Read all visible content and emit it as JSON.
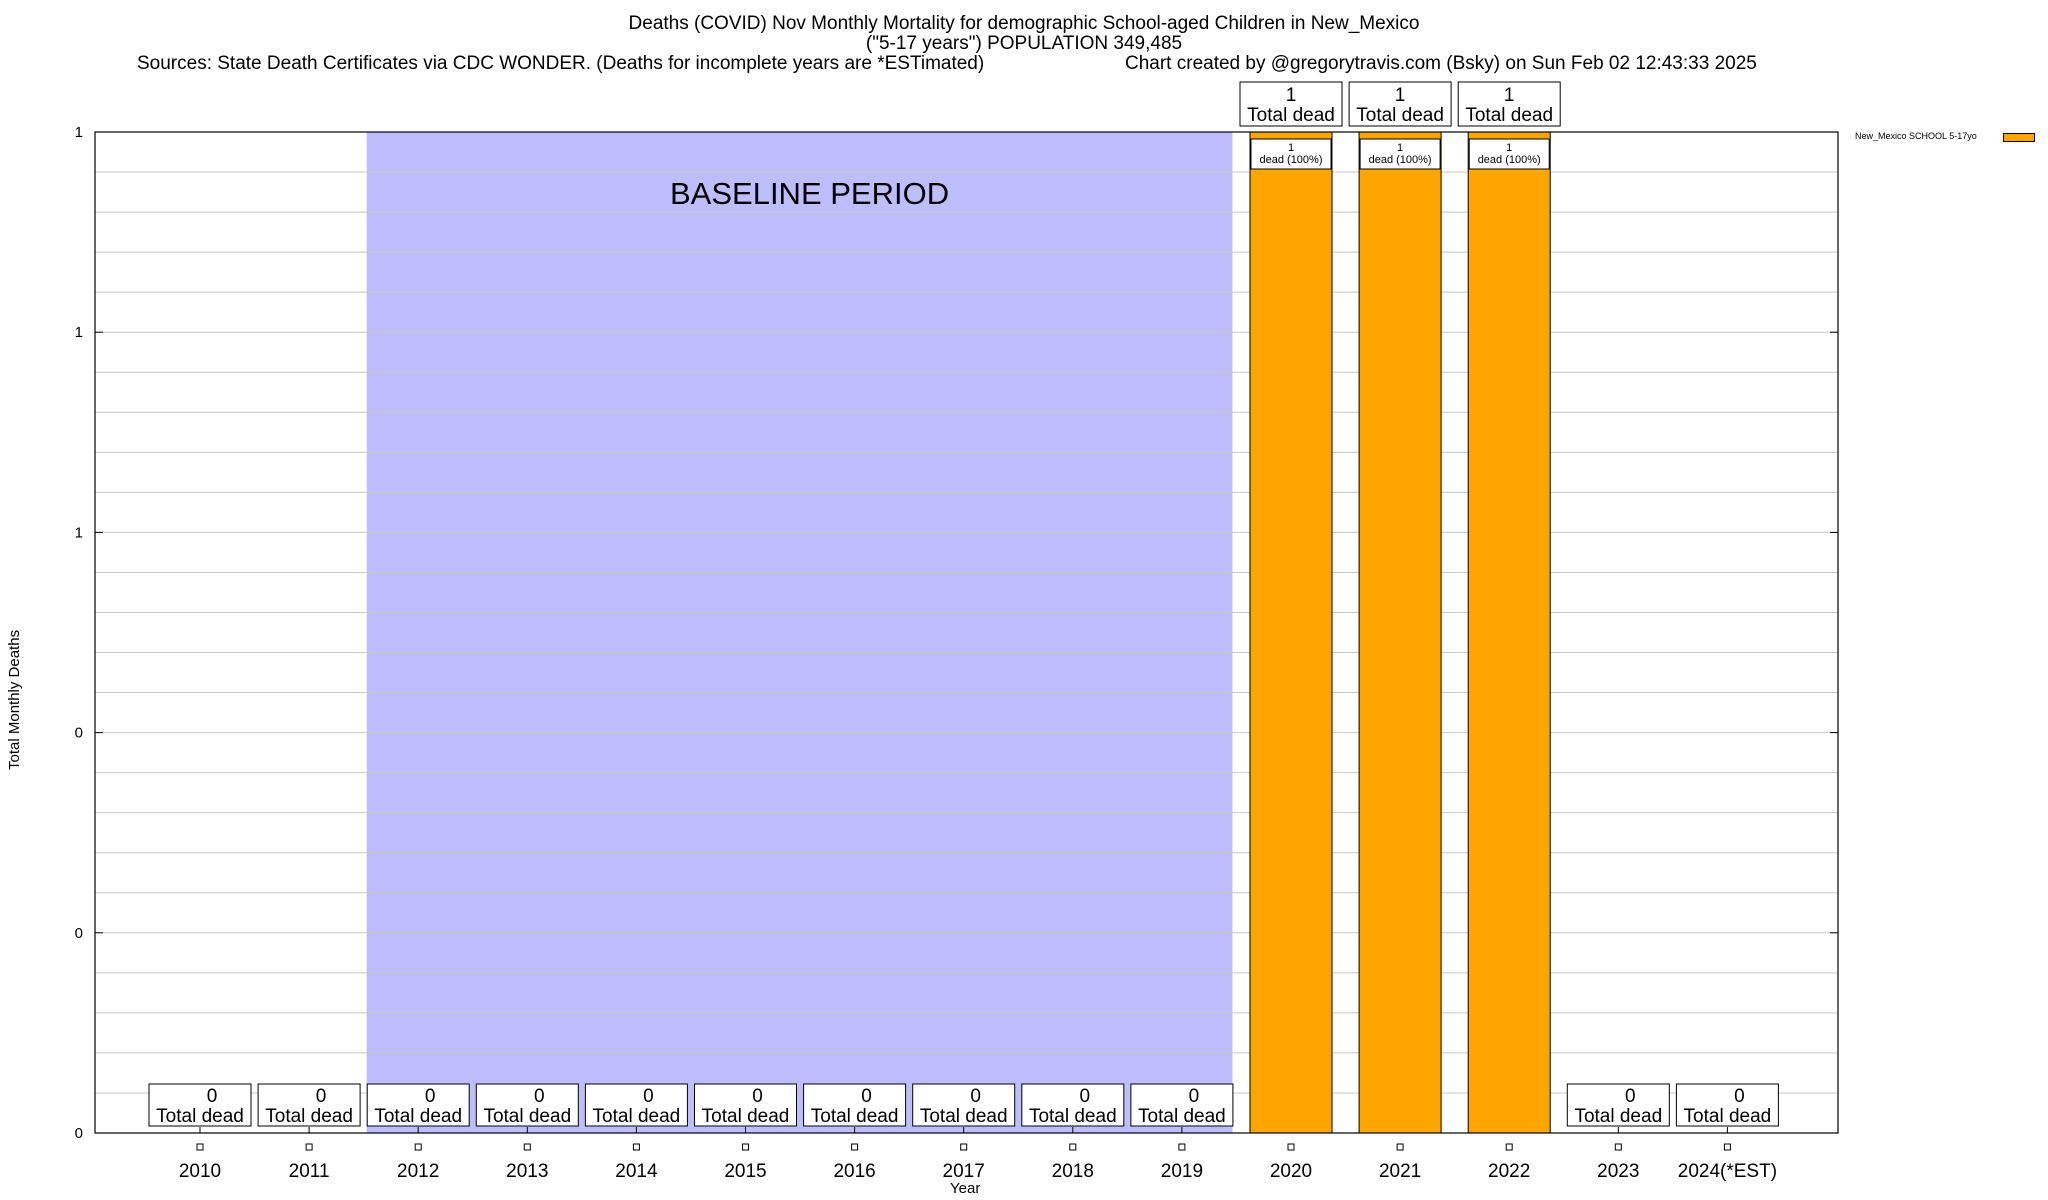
{
  "titles": {
    "line1": "Deaths (COVID) Nov Monthly Mortality for demographic School-aged Children in New_Mexico",
    "line2": "(\"5-17 years\") POPULATION 349,485",
    "sources": "Sources: State Death Certificates via CDC WONDER. (Deaths for incomplete years are *ESTimated)",
    "credit": "Chart created by @gregorytravis.com (Bsky) on Sun Feb 02 12:43:33 2025"
  },
  "colors": {
    "bar": "#ffa500",
    "baseline_fill": "#bebefe"
  },
  "chart_data": {
    "type": "bar",
    "categories": [
      "2010",
      "2011",
      "2012",
      "2013",
      "2014",
      "2015",
      "2016",
      "2017",
      "2018",
      "2019",
      "2020",
      "2021",
      "2022",
      "2023",
      "2024(*EST)"
    ],
    "series": [
      {
        "name": "New_Mexico SCHOOL 5-17yo",
        "values": [
          0,
          0,
          0,
          0,
          0,
          0,
          0,
          0,
          0,
          0,
          1,
          1,
          1,
          0,
          0
        ]
      }
    ],
    "total_labels": [
      "0",
      "0",
      "0",
      "0",
      "0",
      "0",
      "0",
      "0",
      "0",
      "0",
      "1",
      "1",
      "1",
      "0",
      "0"
    ],
    "total_suffix": "Total dead",
    "bar_label_count": "1",
    "bar_label_text": "dead (100%)",
    "xlabel": "Year",
    "ylabel": "Total Monthly Deaths",
    "ylim": [
      0,
      1
    ],
    "y_tick_labels": [
      "0",
      "0",
      "0",
      "1",
      "1",
      "1"
    ],
    "grid": true,
    "legend_position": "top-right",
    "baseline_annotation": "BASELINE PERIOD",
    "baseline_range": [
      "2012",
      "2019"
    ]
  }
}
